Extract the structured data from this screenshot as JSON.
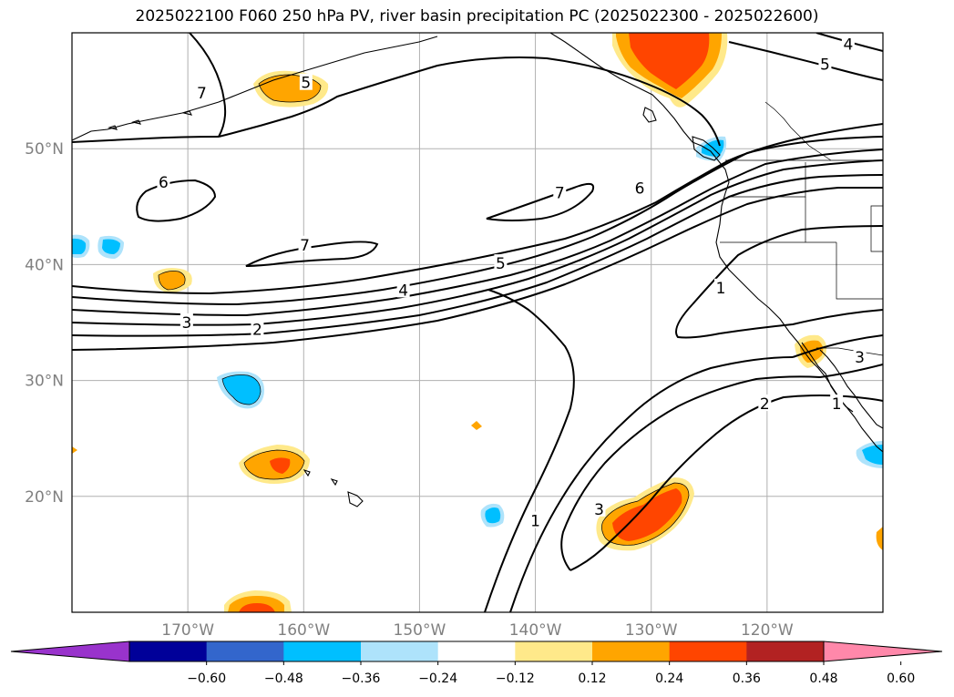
{
  "title": "2025022100 F060 250 hPa PV, river basin precipitation PC (2025022300 - 2025022600)",
  "map": {
    "lon_range": [
      -180,
      -110
    ],
    "lat_range": [
      10,
      60
    ],
    "lat_ticks": [
      {
        "value": 20,
        "label": "20°N"
      },
      {
        "value": 30,
        "label": "30°N"
      },
      {
        "value": 40,
        "label": "40°N"
      },
      {
        "value": 50,
        "label": "50°N"
      }
    ],
    "lon_ticks": [
      {
        "value": -170,
        "label": "170°W"
      },
      {
        "value": -160,
        "label": "160°W"
      },
      {
        "value": -150,
        "label": "150°W"
      },
      {
        "value": -140,
        "label": "140°W"
      },
      {
        "value": -130,
        "label": "130°W"
      },
      {
        "value": -120,
        "label": "120°W"
      }
    ],
    "grid": true,
    "pv_contour_labels": [
      {
        "text": "5",
        "lon": -159.8,
        "lat": 55.7
      },
      {
        "text": "7",
        "lon": -168.8,
        "lat": 54.8
      },
      {
        "text": "6",
        "lon": -172.1,
        "lat": 47.1
      },
      {
        "text": "7",
        "lon": -159.9,
        "lat": 41.7
      },
      {
        "text": "7",
        "lon": -137.9,
        "lat": 46.2
      },
      {
        "text": "6",
        "lon": -131.0,
        "lat": 46.6
      },
      {
        "text": "5",
        "lon": -143.0,
        "lat": 40.1
      },
      {
        "text": "4",
        "lon": -151.4,
        "lat": 37.8
      },
      {
        "text": "3",
        "lon": -170.1,
        "lat": 35.0
      },
      {
        "text": "2",
        "lon": -164.0,
        "lat": 34.4
      },
      {
        "text": "1",
        "lon": -124.0,
        "lat": 38.0
      },
      {
        "text": "2",
        "lon": -120.2,
        "lat": 28.0
      },
      {
        "text": "3",
        "lon": -134.5,
        "lat": 18.9
      },
      {
        "text": "1",
        "lon": -140.0,
        "lat": 17.9
      },
      {
        "text": "1",
        "lon": -114.0,
        "lat": 28.0
      },
      {
        "text": "3",
        "lon": -112.0,
        "lat": 32.0
      },
      {
        "text": "5",
        "lon": -115.0,
        "lat": 57.3
      },
      {
        "text": "4",
        "lon": -113.0,
        "lat": 59.0
      }
    ]
  },
  "colorbar": {
    "ticks": [
      {
        "value": -0.6,
        "label": "−0.60"
      },
      {
        "value": -0.48,
        "label": "−0.48"
      },
      {
        "value": -0.36,
        "label": "−0.36"
      },
      {
        "value": -0.24,
        "label": "−0.24"
      },
      {
        "value": -0.12,
        "label": "−0.12"
      },
      {
        "value": 0.12,
        "label": "0.12"
      },
      {
        "value": 0.24,
        "label": "0.24"
      },
      {
        "value": 0.36,
        "label": "0.36"
      },
      {
        "value": 0.48,
        "label": "0.48"
      },
      {
        "value": 0.6,
        "label": "0.60"
      }
    ],
    "colors": [
      "#9933cc",
      "#000099",
      "#3366cc",
      "#00bfff",
      "#aee3fb",
      "#ffffff",
      "#ffe98a",
      "#ffa500",
      "#ff4500",
      "#b22222",
      "#ff88aa"
    ],
    "extend": "both"
  }
}
